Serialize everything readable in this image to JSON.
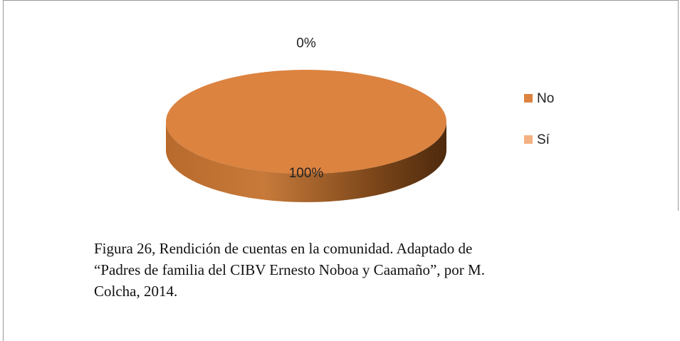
{
  "chart_data": {
    "type": "pie",
    "categories": [
      "No",
      "Sí"
    ],
    "values": [
      100,
      0
    ],
    "value_labels": [
      "100%",
      "0%"
    ],
    "colors": [
      "#dc8340",
      "#f4b183"
    ],
    "legend": "right"
  },
  "caption": [
    "Figura 26, Rendición de cuentas en la comunidad. Adaptado de",
    "“Padres de familia del CIBV Ernesto Noboa y Caamaño”, por M.",
    "Colcha, 2014."
  ]
}
